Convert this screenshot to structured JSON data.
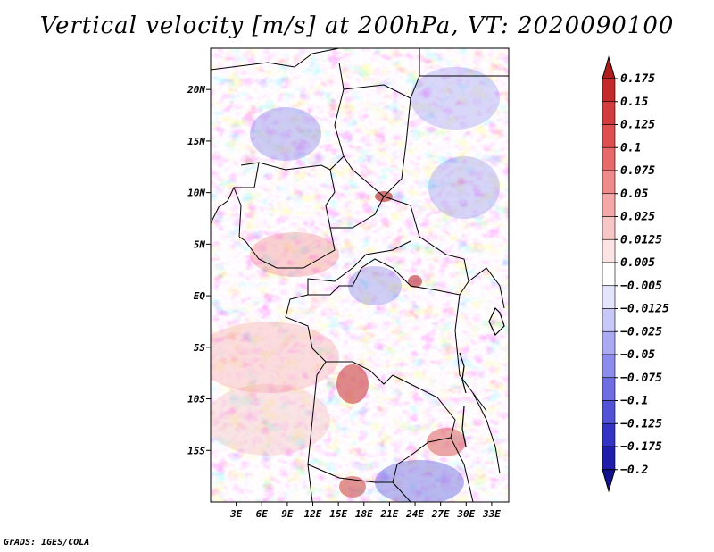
{
  "title": "Vertical velocity [m/s] at 200hPa, VT: 2020090100",
  "credit": "GrADS: IGES/COLA",
  "chart_data": {
    "type": "heatmap",
    "variable": "Vertical velocity",
    "units": "m/s",
    "level": "200hPa",
    "valid_time": "2020090100",
    "lon_range": [
      0,
      35
    ],
    "lat_range": [
      -20,
      24
    ],
    "x_ticks": [
      {
        "value": 3,
        "label": "3E"
      },
      {
        "value": 6,
        "label": "6E"
      },
      {
        "value": 9,
        "label": "9E"
      },
      {
        "value": 12,
        "label": "12E"
      },
      {
        "value": 15,
        "label": "15E"
      },
      {
        "value": 18,
        "label": "18E"
      },
      {
        "value": 21,
        "label": "21E"
      },
      {
        "value": 24,
        "label": "24E"
      },
      {
        "value": 27,
        "label": "27E"
      },
      {
        "value": 30,
        "label": "30E"
      },
      {
        "value": 33,
        "label": "33E"
      }
    ],
    "y_ticks": [
      {
        "value": 20,
        "label": "20N"
      },
      {
        "value": 15,
        "label": "15N"
      },
      {
        "value": 10,
        "label": "10N"
      },
      {
        "value": 5,
        "label": "5N"
      },
      {
        "value": 0,
        "label": "EQ"
      },
      {
        "value": -5,
        "label": "5S"
      },
      {
        "value": -10,
        "label": "10S"
      },
      {
        "value": -15,
        "label": "15S"
      }
    ],
    "colorbar": {
      "levels": [
        "0.175",
        "0.15",
        "0.125",
        "0.1",
        "0.075",
        "0.05",
        "0.025",
        "0.0125",
        "0.005",
        "-0.005",
        "-0.0125",
        "-0.025",
        "-0.05",
        "-0.075",
        "-0.1",
        "-0.125",
        "-0.175",
        "-0.2"
      ],
      "colors": [
        "#b01c1c",
        "#c42a2a",
        "#d23c3c",
        "#de5050",
        "#e66a6a",
        "#ee8a8a",
        "#f4a8a8",
        "#f8c6c6",
        "#fde4e4",
        "#ffffff",
        "#e4e4fc",
        "#c8c8f8",
        "#aaaaf2",
        "#8c8cec",
        "#6e6ee2",
        "#5252d6",
        "#3434c4",
        "#1e1eaa",
        "#12128e"
      ]
    }
  }
}
